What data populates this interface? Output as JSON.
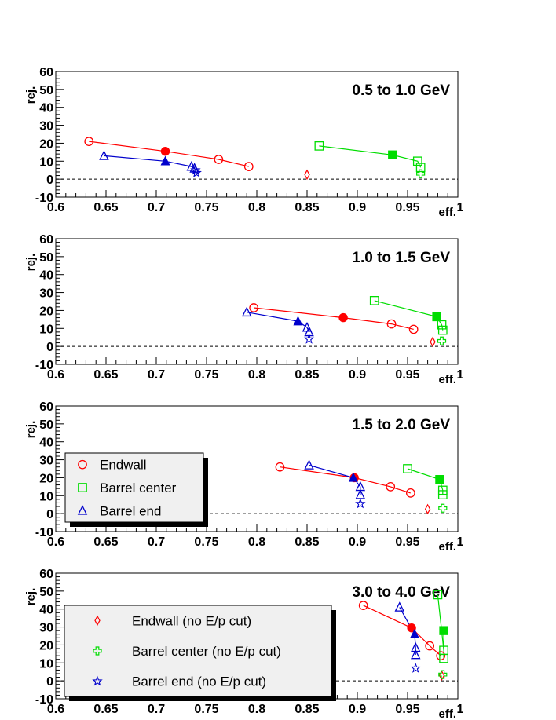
{
  "colors": {
    "endwall": "#ff0000",
    "barrel_center": "#00dd00",
    "barrel_end": "#0000cc",
    "axis": "#000000",
    "background": "#ffffff",
    "legend_bg": "#f0f0f0"
  },
  "legends": [
    {
      "panel": 2,
      "entries": [
        {
          "label": "Endwall",
          "marker": "circle-open",
          "series": "endwall"
        },
        {
          "label": "Barrel center",
          "marker": "square-open",
          "series": "barrel_center"
        },
        {
          "label": "Barrel end",
          "marker": "triangle-open",
          "series": "barrel_end"
        }
      ]
    },
    {
      "panel": 3,
      "entries": [
        {
          "label": "Endwall (no E/p cut)",
          "marker": "diamond-open",
          "series": "endwall"
        },
        {
          "label": "Barrel center (no E/p cut)",
          "marker": "cross-open",
          "series": "barrel_center"
        },
        {
          "label": "Barrel end (no E/p cut)",
          "marker": "star-open",
          "series": "barrel_end"
        }
      ]
    }
  ],
  "chart_data": [
    {
      "type": "scatter",
      "title": "0.5 to 1.0 GeV",
      "xlabel": "eff.",
      "ylabel": "rej.",
      "xlim": [
        0.6,
        1.0
      ],
      "ylim": [
        -10,
        60
      ],
      "xticks": [
        "0.6",
        "0.65",
        "0.7",
        "0.75",
        "0.8",
        "0.85",
        "0.9",
        "0.95",
        "1"
      ],
      "yticks": [
        "-10",
        "0",
        "10",
        "20",
        "30",
        "40",
        "50",
        "60"
      ],
      "dashed_zero_line": true,
      "series": [
        {
          "name": "Endwall",
          "color_key": "endwall",
          "marker": "circle-open",
          "x": [
            0.633,
            0.762,
            0.792
          ],
          "y": [
            21,
            11,
            7
          ]
        },
        {
          "name": "Endwall (selected)",
          "color_key": "endwall",
          "marker": "circle-filled",
          "x": [
            0.709
          ],
          "y": [
            15.5
          ]
        },
        {
          "name": "Barrel center",
          "color_key": "barrel_center",
          "marker": "square-open",
          "x": [
            0.862,
            0.96,
            0.963
          ],
          "y": [
            18.5,
            10,
            6.5
          ]
        },
        {
          "name": "Barrel center (selected)",
          "color_key": "barrel_center",
          "marker": "square-filled",
          "x": [
            0.935
          ],
          "y": [
            13.5
          ]
        },
        {
          "name": "Barrel end",
          "color_key": "barrel_end",
          "marker": "triangle-open",
          "x": [
            0.648,
            0.735,
            0.738
          ],
          "y": [
            13,
            7,
            6
          ]
        },
        {
          "name": "Barrel end (selected)",
          "color_key": "barrel_end",
          "marker": "triangle-filled",
          "x": [
            0.709
          ],
          "y": [
            10
          ]
        },
        {
          "name": "Endwall (no E/p cut)",
          "color_key": "endwall",
          "marker": "diamond-open",
          "x": [
            0.85
          ],
          "y": [
            2.5
          ]
        },
        {
          "name": "Barrel center (no E/p cut)",
          "color_key": "barrel_center",
          "marker": "cross-open",
          "x": [
            0.963
          ],
          "y": [
            3
          ]
        },
        {
          "name": "Barrel end (no E/p cut)",
          "color_key": "barrel_end",
          "marker": "star-open",
          "x": [
            0.739,
            0.74
          ],
          "y": [
            5,
            3.5
          ]
        }
      ]
    },
    {
      "type": "scatter",
      "title": "1.0 to 1.5 GeV",
      "xlabel": "eff.",
      "ylabel": "rej.",
      "xlim": [
        0.6,
        1.0
      ],
      "ylim": [
        -10,
        60
      ],
      "xticks": [
        "0.6",
        "0.65",
        "0.7",
        "0.75",
        "0.8",
        "0.85",
        "0.9",
        "0.95",
        "1"
      ],
      "yticks": [
        "-10",
        "0",
        "10",
        "20",
        "30",
        "40",
        "50",
        "60"
      ],
      "dashed_zero_line": true,
      "series": [
        {
          "name": "Endwall",
          "color_key": "endwall",
          "marker": "circle-open",
          "x": [
            0.797,
            0.934,
            0.956
          ],
          "y": [
            21.5,
            12.5,
            9.5
          ]
        },
        {
          "name": "Endwall (selected)",
          "color_key": "endwall",
          "marker": "circle-filled",
          "x": [
            0.886
          ],
          "y": [
            16
          ]
        },
        {
          "name": "Barrel center",
          "color_key": "barrel_center",
          "marker": "square-open",
          "x": [
            0.917,
            0.984,
            0.985
          ],
          "y": [
            25.5,
            12,
            9
          ]
        },
        {
          "name": "Barrel center (selected)",
          "color_key": "barrel_center",
          "marker": "square-filled",
          "x": [
            0.979
          ],
          "y": [
            16.5
          ]
        },
        {
          "name": "Barrel end",
          "color_key": "barrel_end",
          "marker": "triangle-open",
          "x": [
            0.79,
            0.85,
            0.852
          ],
          "y": [
            19,
            10.5,
            8
          ]
        },
        {
          "name": "Barrel end (selected)",
          "color_key": "barrel_end",
          "marker": "triangle-filled",
          "x": [
            0.841
          ],
          "y": [
            14
          ]
        },
        {
          "name": "Endwall (no E/p cut)",
          "color_key": "endwall",
          "marker": "diamond-open",
          "x": [
            0.975
          ],
          "y": [
            2.5
          ]
        },
        {
          "name": "Barrel center (no E/p cut)",
          "color_key": "barrel_center",
          "marker": "cross-open",
          "x": [
            0.984
          ],
          "y": [
            3
          ]
        },
        {
          "name": "Barrel end (no E/p cut)",
          "color_key": "barrel_end",
          "marker": "star-open",
          "x": [
            0.852
          ],
          "y": [
            4
          ]
        }
      ]
    },
    {
      "type": "scatter",
      "title": "1.5 to 2.0 GeV",
      "xlabel": "eff.",
      "ylabel": "rej.",
      "xlim": [
        0.6,
        1.0
      ],
      "ylim": [
        -10,
        60
      ],
      "xticks": [
        "0.6",
        "0.65",
        "0.7",
        "0.75",
        "0.8",
        "0.85",
        "0.9",
        "0.95",
        "1"
      ],
      "yticks": [
        "-10",
        "0",
        "10",
        "20",
        "30",
        "40",
        "50",
        "60"
      ],
      "dashed_zero_line": true,
      "series": [
        {
          "name": "Endwall",
          "color_key": "endwall",
          "marker": "circle-open",
          "x": [
            0.823,
            0.933,
            0.953
          ],
          "y": [
            26,
            15,
            11.5
          ]
        },
        {
          "name": "Endwall (selected)",
          "color_key": "endwall",
          "marker": "circle-filled",
          "x": [
            0.897
          ],
          "y": [
            20
          ]
        },
        {
          "name": "Barrel center",
          "color_key": "barrel_center",
          "marker": "square-open",
          "x": [
            0.95,
            0.985,
            0.985
          ],
          "y": [
            25,
            13,
            10.5
          ]
        },
        {
          "name": "Barrel center (selected)",
          "color_key": "barrel_center",
          "marker": "square-filled",
          "x": [
            0.982
          ],
          "y": [
            19
          ]
        },
        {
          "name": "Barrel end",
          "color_key": "barrel_end",
          "marker": "triangle-open",
          "x": [
            0.852,
            0.903,
            0.903
          ],
          "y": [
            27,
            15,
            10.5
          ]
        },
        {
          "name": "Barrel end (selected)",
          "color_key": "barrel_end",
          "marker": "triangle-filled",
          "x": [
            0.896
          ],
          "y": [
            20
          ]
        },
        {
          "name": "Endwall (no E/p cut)",
          "color_key": "endwall",
          "marker": "diamond-open",
          "x": [
            0.97
          ],
          "y": [
            2.5
          ]
        },
        {
          "name": "Barrel center (no E/p cut)",
          "color_key": "barrel_center",
          "marker": "cross-open",
          "x": [
            0.985
          ],
          "y": [
            3
          ]
        },
        {
          "name": "Barrel end (no E/p cut)",
          "color_key": "barrel_end",
          "marker": "star-open",
          "x": [
            0.903
          ],
          "y": [
            5.5
          ]
        }
      ]
    },
    {
      "type": "scatter",
      "title": "3.0 to 4.0 GeV",
      "xlabel": "eff.",
      "ylabel": "rej.",
      "xlim": [
        0.6,
        1.0
      ],
      "ylim": [
        -10,
        60
      ],
      "xticks": [
        "0.6",
        "0.65",
        "0.7",
        "0.75",
        "0.8",
        "0.85",
        "0.9",
        "0.95",
        "1"
      ],
      "yticks": [
        "-10",
        "0",
        "10",
        "20",
        "30",
        "40",
        "50",
        "60"
      ],
      "dashed_zero_line": true,
      "series": [
        {
          "name": "Endwall",
          "color_key": "endwall",
          "marker": "circle-open",
          "x": [
            0.906,
            0.972,
            0.983
          ],
          "y": [
            42,
            19.5,
            14
          ]
        },
        {
          "name": "Endwall (selected)",
          "color_key": "endwall",
          "marker": "circle-filled",
          "x": [
            0.954
          ],
          "y": [
            29.5
          ]
        },
        {
          "name": "Barrel center",
          "color_key": "barrel_center",
          "marker": "square-open",
          "x": [
            0.98,
            0.986,
            0.986
          ],
          "y": [
            48,
            17,
            12.5
          ]
        },
        {
          "name": "Barrel center (selected)",
          "color_key": "barrel_center",
          "marker": "square-filled",
          "x": [
            0.986
          ],
          "y": [
            28
          ]
        },
        {
          "name": "Barrel end",
          "color_key": "barrel_end",
          "marker": "triangle-open",
          "x": [
            0.942,
            0.958,
            0.958
          ],
          "y": [
            41,
            18.5,
            14.5
          ]
        },
        {
          "name": "Barrel end (selected)",
          "color_key": "barrel_end",
          "marker": "triangle-filled",
          "x": [
            0.957
          ],
          "y": [
            26
          ]
        },
        {
          "name": "Endwall (no E/p cut)",
          "color_key": "endwall",
          "marker": "diamond-open",
          "x": [
            0.984
          ],
          "y": [
            3
          ]
        },
        {
          "name": "Barrel center (no E/p cut)",
          "color_key": "barrel_center",
          "marker": "cross-open",
          "x": [
            0.985
          ],
          "y": [
            3.5
          ]
        },
        {
          "name": "Barrel end (no E/p cut)",
          "color_key": "barrel_end",
          "marker": "star-open",
          "x": [
            0.958
          ],
          "y": [
            7
          ]
        }
      ]
    }
  ]
}
